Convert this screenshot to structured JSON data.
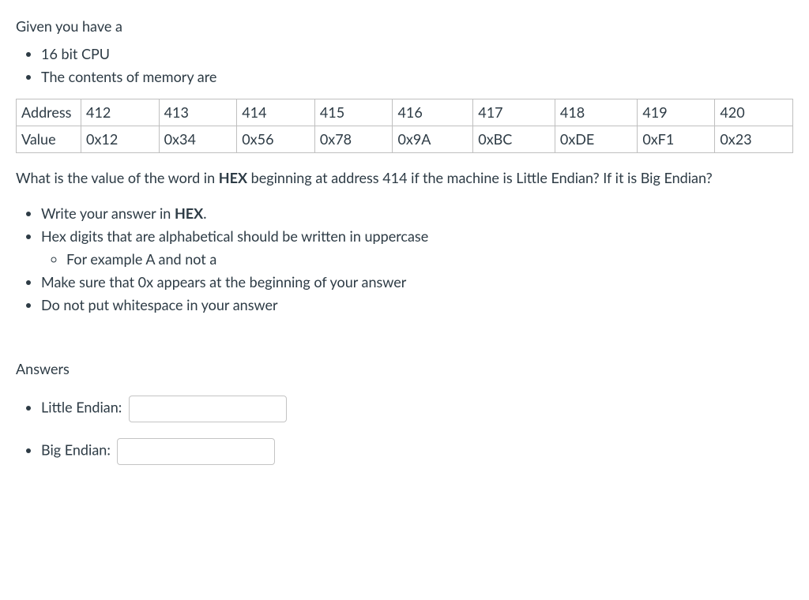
{
  "intro": "Given you have a",
  "given": [
    "16 bit CPU",
    "The contents of memory are"
  ],
  "table": {
    "row_labels": [
      "Address",
      "Value"
    ],
    "addresses": [
      "412",
      "413",
      "414",
      "415",
      "416",
      "417",
      "418",
      "419",
      "420"
    ],
    "values": [
      "0x12",
      "0x34",
      "0x56",
      "0x78",
      "0x9A",
      "0xBC",
      "0xDE",
      "0xF1",
      "0x23"
    ],
    "border_color": "#bfbfbf",
    "columns": 10
  },
  "question": {
    "pre": "What is the value of the word in ",
    "bold": "HEX",
    "post": " beginning at address 414 if the machine is Little Endian? If it is Big Endian?"
  },
  "instructions": {
    "item1_pre": "Write your answer in ",
    "item1_bold": "HEX",
    "item1_post": ".",
    "item2": "Hex digits that are alphabetical should be written in uppercase",
    "item2_sub": "For example A and not a",
    "item3": "Make sure that 0x appears at the beginning of your answer",
    "item4": "Do not put whitespace in your answer"
  },
  "answers_heading": "Answers",
  "answers": {
    "little_label": "Little Endian:",
    "big_label": "Big Endian:",
    "little_value": "",
    "big_value": ""
  },
  "style": {
    "font_family": "Lato, Helvetica Neue, Helvetica, Arial, sans-serif",
    "font_size_pt": 14,
    "text_color": "#2d3b45",
    "background_color": "#ffffff"
  }
}
